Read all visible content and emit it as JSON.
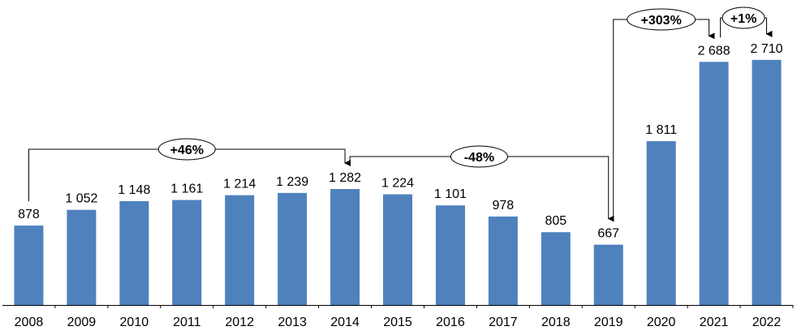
{
  "chart_data": {
    "type": "bar",
    "categories": [
      "2008",
      "2009",
      "2010",
      "2011",
      "2012",
      "2013",
      "2014",
      "2015",
      "2016",
      "2017",
      "2018",
      "2019",
      "2020",
      "2021",
      "2022"
    ],
    "values": [
      878,
      1052,
      1148,
      1161,
      1214,
      1239,
      1282,
      1224,
      1101,
      978,
      805,
      667,
      1811,
      2688,
      2710
    ],
    "value_labels": [
      "878",
      "1 052",
      "1 148",
      "1 161",
      "1 214",
      "1 239",
      "1 282",
      "1 224",
      "1 101",
      "978",
      "805",
      "667",
      "1 811",
      "2 688",
      "2 710"
    ],
    "title": "",
    "xlabel": "",
    "ylabel": "",
    "ylim": [
      0,
      3100
    ],
    "grid": false,
    "color": "#4f81bd",
    "annotations": [
      {
        "label": "+46%",
        "from": "2008",
        "to": "2014"
      },
      {
        "label": "-48%",
        "from": "2014",
        "to": "2019"
      },
      {
        "label": "+303%",
        "from": "2019",
        "to": "2021"
      },
      {
        "label": "+1%",
        "from": "2021",
        "to": "2022"
      }
    ]
  }
}
